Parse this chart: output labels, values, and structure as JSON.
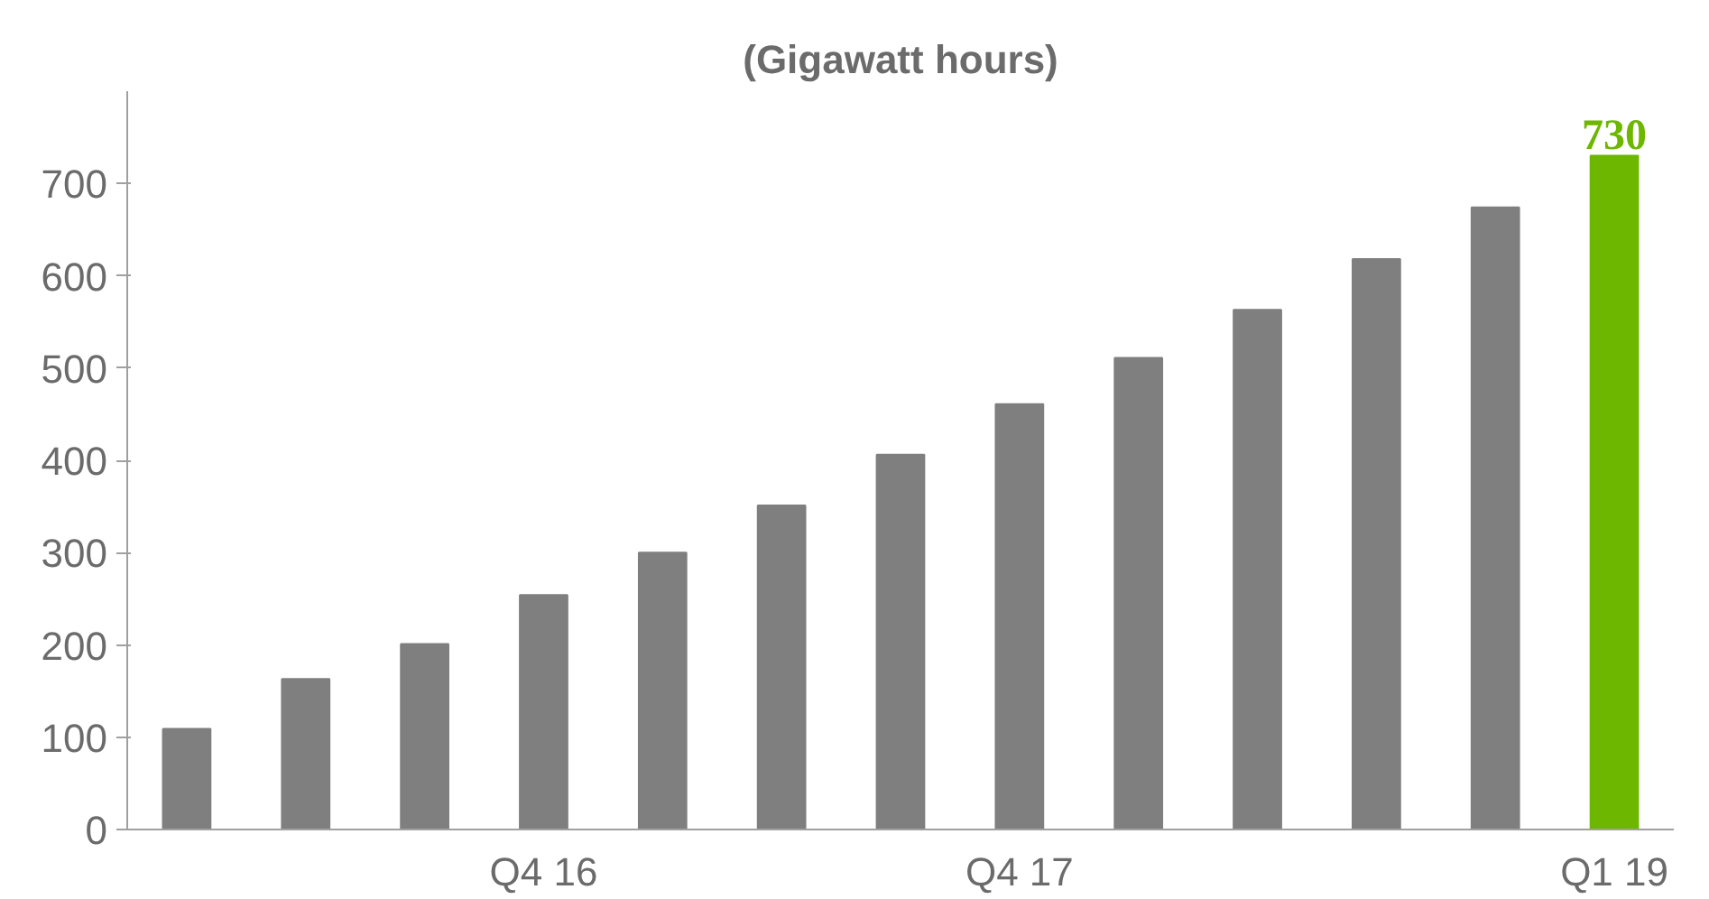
{
  "chart_data": {
    "type": "bar",
    "title": "(Gigawatt hours)",
    "categories": [
      null,
      null,
      null,
      "Q4 16",
      null,
      null,
      null,
      "Q4 17",
      null,
      null,
      null,
      null,
      "Q1 19"
    ],
    "values": [
      109,
      163,
      201,
      254,
      300,
      351,
      406,
      461,
      511,
      563,
      618,
      674,
      730
    ],
    "colors": [
      "#7f7f7f",
      "#7f7f7f",
      "#7f7f7f",
      "#7f7f7f",
      "#7f7f7f",
      "#7f7f7f",
      "#7f7f7f",
      "#7f7f7f",
      "#7f7f7f",
      "#7f7f7f",
      "#7f7f7f",
      "#7f7f7f",
      "#6eb700"
    ],
    "value_labels": [
      null,
      null,
      null,
      null,
      null,
      null,
      null,
      null,
      null,
      null,
      null,
      null,
      "730"
    ],
    "ylim": [
      0,
      800
    ],
    "yticks": [
      0,
      100,
      200,
      300,
      400,
      500,
      600,
      700
    ],
    "grid": false
  }
}
